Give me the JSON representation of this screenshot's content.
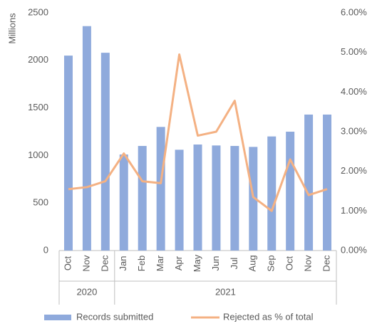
{
  "chart_data": {
    "type": "bar_line",
    "y_label": "Millions",
    "groups": [
      {
        "name": "2020",
        "categories": [
          "Oct",
          "Nov",
          "Dec"
        ]
      },
      {
        "name": "2021",
        "categories": [
          "Jan",
          "Feb",
          "Mar",
          "Apr",
          "May",
          "Jun",
          "Jul",
          "Aug",
          "Sep",
          "Oct",
          "Nov",
          "Dec"
        ]
      }
    ],
    "series": [
      {
        "name": "Records submitted",
        "type": "bar",
        "color": "#8faadc",
        "values": [
          2050,
          2360,
          2080,
          1010,
          1100,
          1300,
          1060,
          1115,
          1105,
          1100,
          1090,
          1200,
          1250,
          1430,
          1430
        ]
      },
      {
        "name": "Rejected as % of total",
        "type": "line",
        "axis": "y2",
        "color": "#f4b183",
        "values": [
          1.55,
          1.6,
          1.75,
          2.45,
          1.75,
          1.7,
          4.95,
          2.9,
          3.0,
          3.78,
          1.35,
          1.0,
          2.3,
          1.4,
          1.55
        ]
      }
    ],
    "ylim": [
      0,
      2500
    ],
    "yticks": [
      0,
      500,
      1000,
      1500,
      2000,
      2500
    ],
    "y2lim": [
      0,
      6
    ],
    "y2ticks": [
      {
        "value": 0,
        "label": "0.00%"
      },
      {
        "value": 1,
        "label": "1.00%"
      },
      {
        "value": 2,
        "label": "2.00%"
      },
      {
        "value": 3,
        "label": "3.00%"
      },
      {
        "value": 4,
        "label": "4.00%"
      },
      {
        "value": 5,
        "label": "5.00%"
      },
      {
        "value": 6,
        "label": "6.00%"
      }
    ],
    "legend": "bottom"
  }
}
